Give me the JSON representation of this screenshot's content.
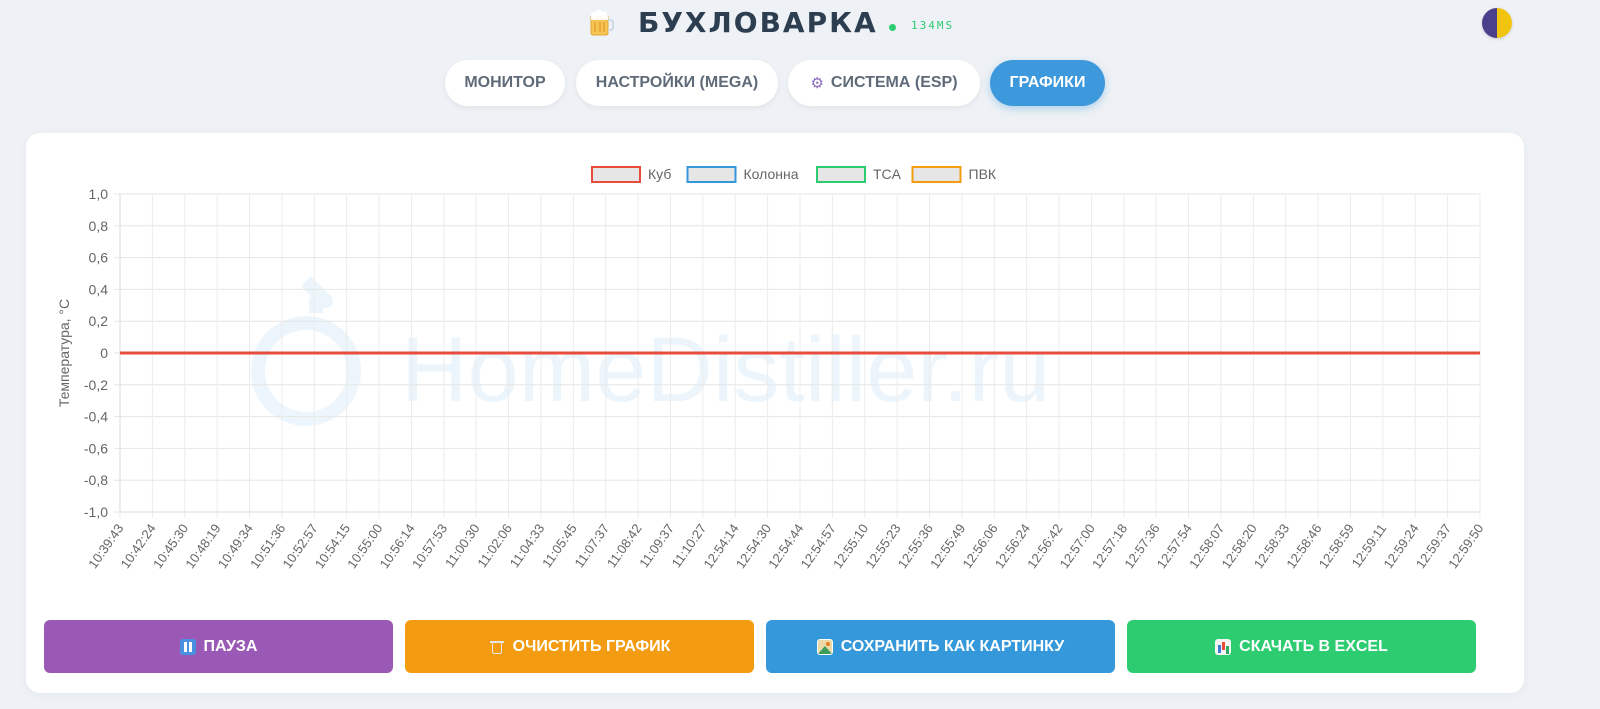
{
  "header": {
    "logo_icon": "beer-mug-icon",
    "title": "БУХЛОВАРКА",
    "ping": "134MS",
    "status_color": "#2ecc71",
    "theme_toggle_icon": "half-moon-icon"
  },
  "nav": {
    "tabs": [
      {
        "label": "МОНИТОР",
        "icon": null,
        "active": false
      },
      {
        "label": "НАСТРОЙКИ (MEGA)",
        "icon": null,
        "active": false
      },
      {
        "label": "СИСТЕМА (ESP)",
        "icon": "gear-icon",
        "active": false
      },
      {
        "label": "ГРАФИКИ",
        "icon": null,
        "active": true
      }
    ]
  },
  "watermark": "HomeDistiller.ru",
  "chart_data": {
    "type": "line",
    "title": "",
    "xlabel": "",
    "ylabel": "Температура, °C",
    "ylim": [
      -1.0,
      1.0
    ],
    "y_ticks": [
      "1,0",
      "0,8",
      "0,6",
      "0,4",
      "0,2",
      "0",
      "-0,2",
      "-0,4",
      "-0,6",
      "-0,8",
      "-1,0"
    ],
    "grid": true,
    "legend_position": "top-center",
    "categories": [
      "10:39:43",
      "10:42:24",
      "10:45:30",
      "10:48:19",
      "10:49:34",
      "10:51:36",
      "10:52:57",
      "10:54:15",
      "10:55:00",
      "10:56:14",
      "10:57:53",
      "11:00:30",
      "11:02:06",
      "11:04:33",
      "11:05:45",
      "11:07:37",
      "11:08:42",
      "11:09:37",
      "11:10:27",
      "12:54:14",
      "12:54:30",
      "12:54:44",
      "12:54:57",
      "12:55:10",
      "12:55:23",
      "12:55:36",
      "12:55:49",
      "12:56:06",
      "12:56:24",
      "12:56:42",
      "12:57:00",
      "12:57:18",
      "12:57:36",
      "12:57:54",
      "12:58:07",
      "12:58:20",
      "12:58:33",
      "12:58:46",
      "12:58:59",
      "12:59:11",
      "12:59:24",
      "12:59:37",
      "12:59:50"
    ],
    "series": [
      {
        "name": "Куб",
        "color": "#e74c3c",
        "values": [
          0,
          0,
          0,
          0,
          0,
          0,
          0,
          0,
          0,
          0,
          0,
          0,
          0,
          0,
          0,
          0,
          0,
          0,
          0,
          0,
          0,
          0,
          0,
          0,
          0,
          0,
          0,
          0,
          0,
          0,
          0,
          0,
          0,
          0,
          0,
          0,
          0,
          0,
          0,
          0,
          0,
          0,
          0
        ]
      },
      {
        "name": "Колонна",
        "color": "#3498db",
        "values": [
          0,
          0,
          0,
          0,
          0,
          0,
          0,
          0,
          0,
          0,
          0,
          0,
          0,
          0,
          0,
          0,
          0,
          0,
          0,
          0,
          0,
          0,
          0,
          0,
          0,
          0,
          0,
          0,
          0,
          0,
          0,
          0,
          0,
          0,
          0,
          0,
          0,
          0,
          0,
          0,
          0,
          0,
          0
        ]
      },
      {
        "name": "TCA",
        "color": "#2ecc71",
        "values": [
          0,
          0,
          0,
          0,
          0,
          0,
          0,
          0,
          0,
          0,
          0,
          0,
          0,
          0,
          0,
          0,
          0,
          0,
          0,
          0,
          0,
          0,
          0,
          0,
          0,
          0,
          0,
          0,
          0,
          0,
          0,
          0,
          0,
          0,
          0,
          0,
          0,
          0,
          0,
          0,
          0,
          0,
          0
        ]
      },
      {
        "name": "ПВК",
        "color": "#f39c12",
        "values": [
          0,
          0,
          0,
          0,
          0,
          0,
          0,
          0,
          0,
          0,
          0,
          0,
          0,
          0,
          0,
          0,
          0,
          0,
          0,
          0,
          0,
          0,
          0,
          0,
          0,
          0,
          0,
          0,
          0,
          0,
          0,
          0,
          0,
          0,
          0,
          0,
          0,
          0,
          0,
          0,
          0,
          0,
          0
        ]
      }
    ]
  },
  "actions": [
    {
      "name": "pause-button",
      "label": "ПАУЗА",
      "icon": "pause-icon",
      "color": "#9b59b6"
    },
    {
      "name": "clear-chart-button",
      "label": "ОЧИСТИТЬ ГРАФИК",
      "icon": "trash-icon",
      "color": "#f39c12"
    },
    {
      "name": "save-image-button",
      "label": "СОХРАНИТЬ КАК КАРТИНКУ",
      "icon": "image-icon",
      "color": "#3498db"
    },
    {
      "name": "download-excel-button",
      "label": "СКАЧАТЬ В EXCEL",
      "icon": "bar-chart-icon",
      "color": "#2ecc71"
    }
  ]
}
